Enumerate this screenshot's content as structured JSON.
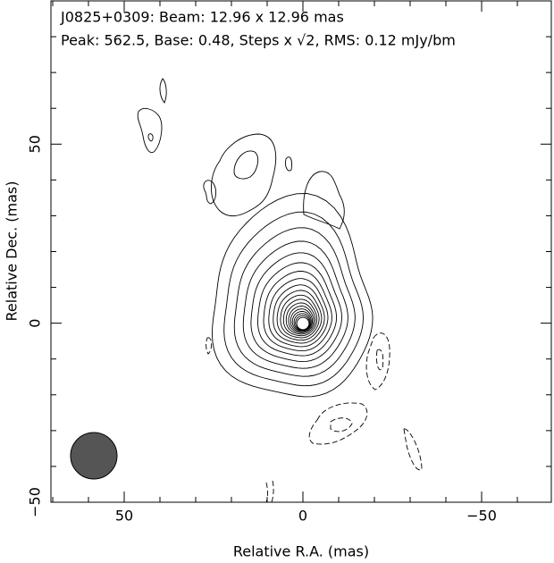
{
  "chart_data": {
    "type": "contour",
    "title_lines": [
      "J0825+0309: Beam: 12.96 x 12.96 mas",
      "Peak: 562.5, Base: 0.48, Steps x √2, RMS: 0.12 mJy/bm"
    ],
    "xlabel": "Relative R.A. (mas)",
    "ylabel": "Relative Dec. (mas)",
    "xlim": [
      70.5,
      -69.5
    ],
    "ylim": [
      -50,
      90
    ],
    "xticks": [
      50,
      0,
      {
        "value": -50,
        "label": "−50"
      }
    ],
    "yticks": [
      {
        "value": -50,
        "label": "−50"
      },
      0,
      50
    ],
    "xminorticks": [
      70,
      60,
      40,
      30,
      20,
      10,
      -10,
      -20,
      -30,
      -40,
      -60
    ],
    "yminorticks": [
      -40,
      -30,
      -20,
      -10,
      10,
      20,
      30,
      40,
      60,
      70,
      80
    ]
  }
}
